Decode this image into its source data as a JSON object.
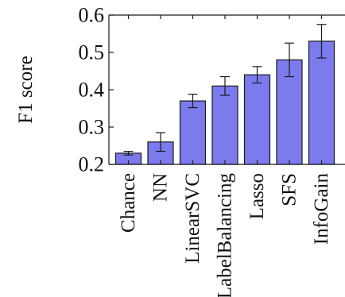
{
  "chart_data": {
    "type": "bar",
    "title": "",
    "xlabel": "",
    "ylabel": "F1 score",
    "categories": [
      "Chance",
      "NN",
      "LinearSVC",
      "LabelBalancing",
      "Lasso",
      "SFS",
      "InfoGain"
    ],
    "series": [
      {
        "values": [
          0.23,
          0.26,
          0.37,
          0.41,
          0.44,
          0.48,
          0.53
        ],
        "error": [
          0.005,
          0.025,
          0.018,
          0.025,
          0.022,
          0.045,
          0.045
        ],
        "color": "#7b7bee"
      }
    ],
    "ylim": [
      0.2,
      0.6
    ],
    "yticks": [
      "0.2",
      "0.3",
      "0.4",
      "0.5",
      "0.6"
    ],
    "grid": false,
    "legend": "none",
    "colors": {
      "bar_fill": "#7b7bee",
      "bar_stroke": "#1a1a1a",
      "axis": "#1a1a1a",
      "text": "#111111"
    }
  }
}
